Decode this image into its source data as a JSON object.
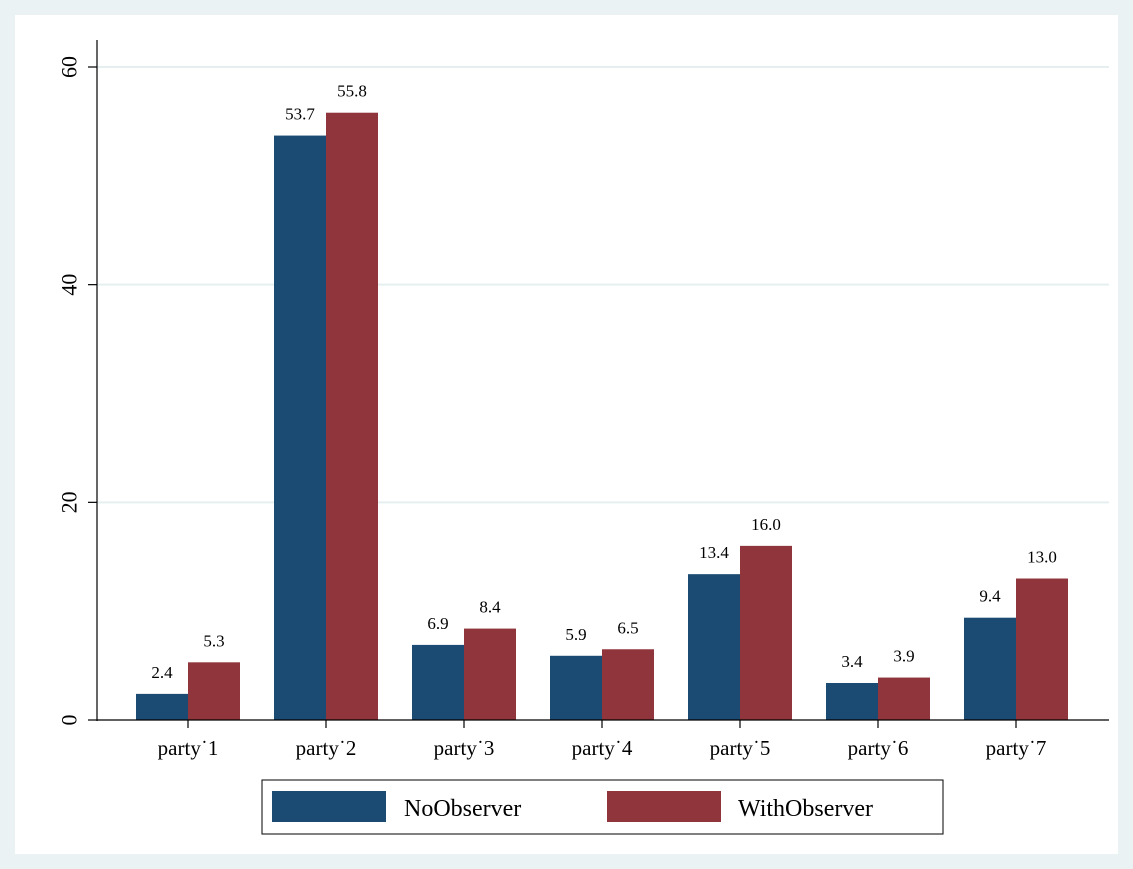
{
  "chart_data": {
    "type": "bar",
    "categories": [
      "party˙1",
      "party˙2",
      "party˙3",
      "party˙4",
      "party˙5",
      "party˙6",
      "party˙7"
    ],
    "series": [
      {
        "name": "NoObserver",
        "color": "#1b4a72",
        "values": [
          2.4,
          53.7,
          6.9,
          5.9,
          13.4,
          3.4,
          9.4
        ],
        "labels": [
          "2.4",
          "53.7",
          "6.9",
          "5.9",
          "13.4",
          "3.4",
          "9.4"
        ]
      },
      {
        "name": "WithObserver",
        "color": "#90353b",
        "values": [
          5.3,
          55.8,
          8.4,
          6.5,
          16.0,
          3.9,
          13.0
        ],
        "labels": [
          "5.3",
          "55.8",
          "8.4",
          "6.5",
          "16.0",
          "3.9",
          "13.0"
        ]
      }
    ],
    "y_ticks": [
      0,
      20,
      40,
      60
    ],
    "y_tick_labels": [
      "0",
      "20",
      "40",
      "60"
    ],
    "ylim": [
      0,
      60
    ],
    "grid": true,
    "legend_position": "bottom",
    "background_color": "#eaf2f3",
    "plot_background_color": "#ffffff"
  }
}
